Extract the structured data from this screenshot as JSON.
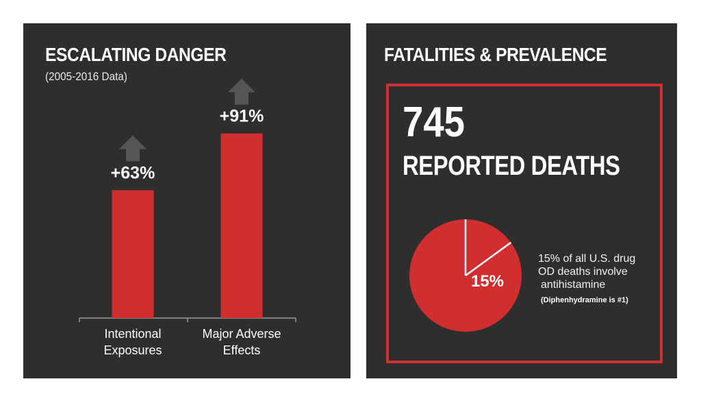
{
  "left_panel": {
    "title": "ESCALATING DANGER",
    "subtitle": "(2005-2016 Data)"
  },
  "right_panel": {
    "title": "FATALITIES & PREVALENCE",
    "deaths_count": "745",
    "deaths_label": "REPORTED DEATHS",
    "pie_label": "15%",
    "note_line1": "15% of all U.S. drug",
    "note_line2": "OD deaths involve",
    "note_line3": "antihistamine",
    "footnote": "(Diphenhydramine is #1)"
  },
  "colors": {
    "panel_bg": "#2e2e2e",
    "accent_red": "#d12f2f",
    "arrow_gray": "#555555"
  },
  "icons": [
    "up-arrow-icon",
    "up-arrow-icon"
  ],
  "chart_data": [
    {
      "type": "bar",
      "title": "ESCALATING DANGER",
      "subtitle": "(2005-2016 Data)",
      "categories": [
        "Intentional Exposures",
        "Major Adverse Effects"
      ],
      "category_lines": [
        [
          "Intentional",
          "Exposures"
        ],
        [
          "Major Adverse",
          "Effects"
        ]
      ],
      "values": [
        63,
        91
      ],
      "value_labels": [
        "+63%",
        "+91%"
      ],
      "unit": "%",
      "ylim": [
        0,
        100
      ],
      "grid": false
    },
    {
      "type": "pie",
      "slices": [
        {
          "label": "15%",
          "value": 15
        },
        {
          "label": "",
          "value": 85
        }
      ]
    }
  ]
}
